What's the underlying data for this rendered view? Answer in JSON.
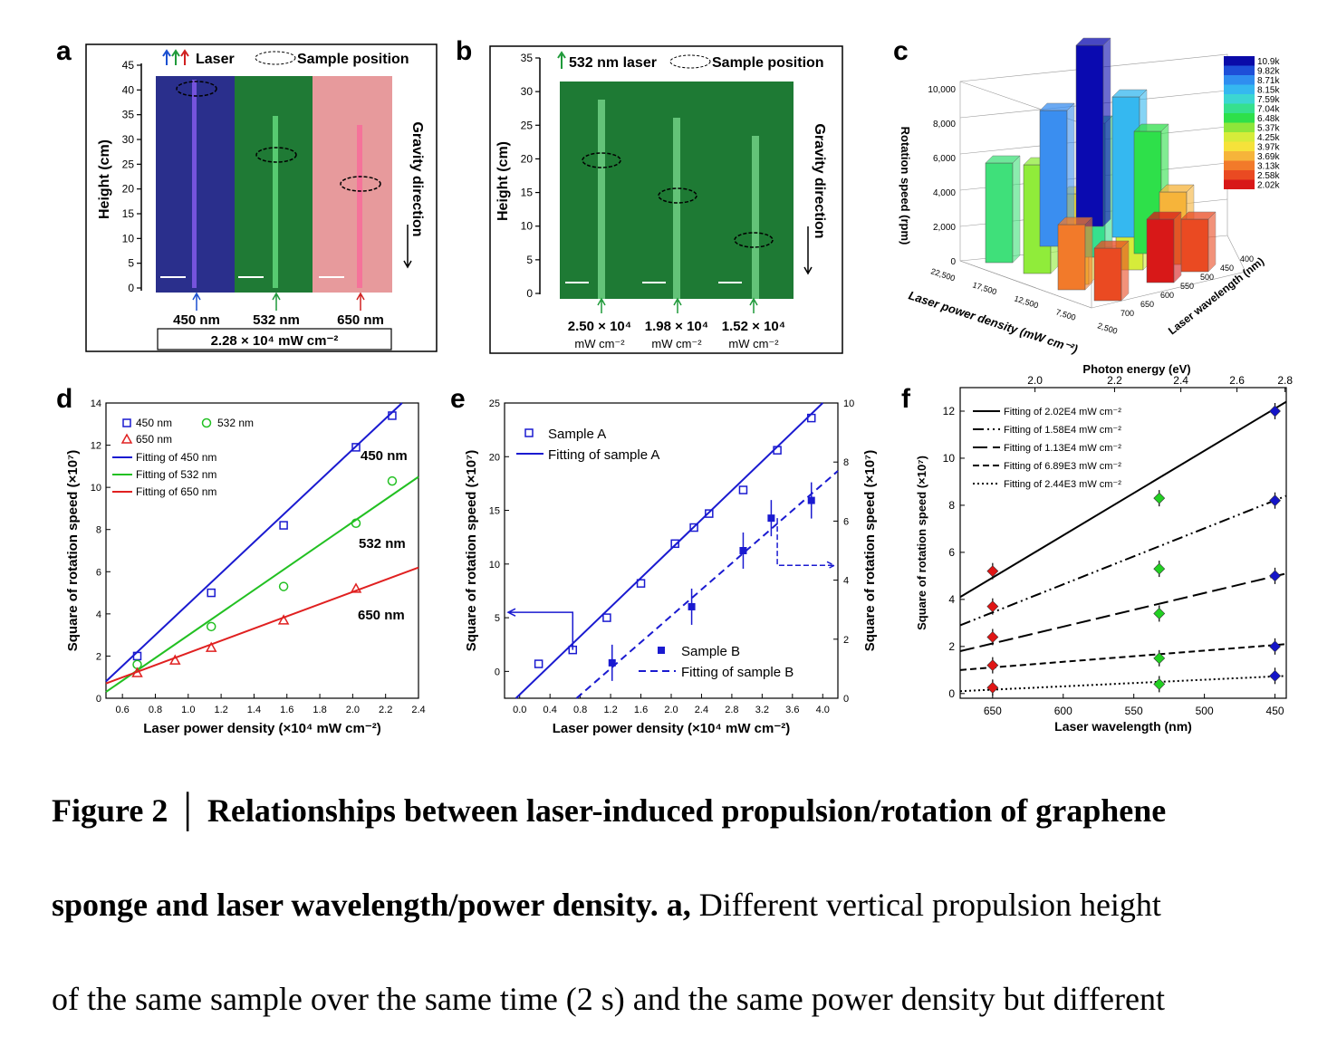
{
  "panels": {
    "a": {
      "label": "a",
      "legend_laser": "Laser",
      "legend_sample": "Sample position",
      "ylabel": "Height (cm)",
      "yticks": [
        "0",
        "5",
        "10",
        "15",
        "20",
        "25",
        "30",
        "35",
        "40",
        "45"
      ],
      "side_label": "Gravity direction",
      "wavelengths": [
        "450 nm",
        "532 nm",
        "650 nm"
      ],
      "power": "2.28 × 10⁴  mW cm⁻²",
      "colors": {
        "blue": "#2a2f8c",
        "green": "#1f7a35",
        "red": "#e79a9c"
      }
    },
    "b": {
      "label": "b",
      "legend_laser": "532 nm laser",
      "legend_sample": "Sample position",
      "ylabel": "Height (cm)",
      "yticks": [
        "0",
        "5",
        "10",
        "15",
        "20",
        "25",
        "30",
        "35"
      ],
      "side_label": "Gravity direction",
      "powers": [
        "2.50 × 10⁴",
        "1.98 × 10⁴",
        "1.52 × 10⁴"
      ],
      "units": [
        "mW cm⁻²",
        "mW cm⁻²",
        "mW cm⁻²"
      ]
    },
    "c": {
      "label": "c",
      "zlabel": "Rotation speed (rpm)",
      "xlabel": "Laser power density (mW cm⁻²)",
      "ylabel": "Laser wavelength (nm)",
      "zticks": [
        "0",
        "2,000",
        "4,000",
        "6,000",
        "8,000",
        "10,000"
      ],
      "xticks": [
        "22,500",
        "17,500",
        "12,500",
        "7,500",
        "2,500"
      ],
      "yticks": [
        "400",
        "450",
        "500",
        "550",
        "600",
        "650",
        "700"
      ],
      "colorbar": [
        "10.9k",
        "9.82k",
        "8.71k",
        "8.15k",
        "7.59k",
        "7.04k",
        "6.48k",
        "5.37k",
        "4.25k",
        "3.97k",
        "3.69k",
        "3.13k",
        "2.58k",
        "2.02k"
      ],
      "colorbar_colors": [
        "#0a0aa8",
        "#1e4fd8",
        "#2f8ef0",
        "#35b8f0",
        "#3cd6d2",
        "#36e08e",
        "#2ee04a",
        "#8ee63a",
        "#d6ec3a",
        "#f6e23a",
        "#f6b43a",
        "#f27a2a",
        "#ea4a22",
        "#d81818"
      ]
    },
    "d": {
      "label": "d"
    },
    "e": {
      "label": "e"
    },
    "f": {
      "label": "f"
    }
  },
  "chart_data": [
    {
      "id": "d",
      "type": "scatter",
      "xlabel": "Laser power density (×10⁴ mW cm⁻²)",
      "ylabel": "Square of rotation speed (×10⁷)",
      "xlim": [
        0.5,
        2.4
      ],
      "ylim": [
        0,
        14
      ],
      "xticks": [
        0.6,
        0.8,
        1.0,
        1.2,
        1.4,
        1.6,
        1.8,
        2.0,
        2.2,
        2.4
      ],
      "yticks": [
        0,
        2,
        4,
        6,
        8,
        10,
        12,
        14
      ],
      "series": [
        {
          "name": "450 nm",
          "color": "#1a1ad0",
          "marker": "square",
          "points": [
            [
              0.69,
              2.0
            ],
            [
              1.14,
              5.0
            ],
            [
              1.58,
              8.2
            ],
            [
              2.02,
              11.9
            ],
            [
              2.24,
              13.4
            ]
          ],
          "fit": [
            [
              0.5,
              0.8
            ],
            [
              2.3,
              14.0
            ]
          ],
          "fit_name": "Fitting of 450 nm",
          "line_label": "450 nm"
        },
        {
          "name": "532 nm",
          "color": "#22c022",
          "marker": "circle",
          "points": [
            [
              0.69,
              1.6
            ],
            [
              1.14,
              3.4
            ],
            [
              1.58,
              5.3
            ],
            [
              2.02,
              8.3
            ],
            [
              2.24,
              10.3
            ]
          ],
          "fit": [
            [
              0.5,
              0.3
            ],
            [
              2.4,
              10.5
            ]
          ],
          "fit_name": "Fitting of 532 nm",
          "line_label": "532 nm"
        },
        {
          "name": "650 nm",
          "color": "#e02020",
          "marker": "triangle",
          "points": [
            [
              0.69,
              1.2
            ],
            [
              0.92,
              1.8
            ],
            [
              1.14,
              2.4
            ],
            [
              1.58,
              3.7
            ],
            [
              2.02,
              5.2
            ]
          ],
          "fit": [
            [
              0.5,
              0.7
            ],
            [
              2.4,
              6.2
            ]
          ],
          "fit_name": "Fitting of 650 nm",
          "line_label": "650 nm"
        }
      ]
    },
    {
      "id": "e",
      "type": "scatter",
      "xlabel": "Laser power density (×10⁴ mW cm⁻²)",
      "ylabel": "Square of rotation speed (×10⁷)",
      "xlim": [
        -0.2,
        4.2
      ],
      "ylim": [
        -2.5,
        25
      ],
      "y2lim": [
        0,
        10
      ],
      "xticks": [
        0.0,
        0.4,
        0.8,
        1.2,
        1.6,
        2.0,
        2.4,
        2.8,
        3.2,
        3.6,
        4.0
      ],
      "yticks": [
        0,
        5,
        10,
        15,
        20,
        25
      ],
      "y2ticks": [
        0,
        2,
        4,
        6,
        8,
        10
      ],
      "series": [
        {
          "name": "Sample A",
          "fit_name": "Fitting of sample A",
          "color": "#1a1ad0",
          "marker": "square-open",
          "axis": "left",
          "points": [
            [
              0.25,
              0.7
            ],
            [
              0.7,
              2.0
            ],
            [
              1.15,
              5.0
            ],
            [
              1.6,
              8.2
            ],
            [
              2.05,
              11.9
            ],
            [
              2.3,
              13.4
            ],
            [
              2.5,
              14.7
            ],
            [
              2.95,
              16.9
            ],
            [
              3.4,
              20.6
            ],
            [
              3.85,
              23.6
            ]
          ],
          "fit": [
            [
              -0.05,
              -2.5
            ],
            [
              4.0,
              25.0
            ]
          ]
        },
        {
          "name": "Sample B",
          "fit_name": "Fitting of sample B",
          "color": "#1a1ad0",
          "marker": "square-filled",
          "axis": "right",
          "points": [
            [
              1.22,
              1.2
            ],
            [
              2.27,
              3.1
            ],
            [
              2.95,
              5.0
            ],
            [
              3.32,
              6.1
            ],
            [
              3.85,
              6.7
            ]
          ],
          "fit": [
            [
              0.75,
              0
            ],
            [
              4.2,
              7.7
            ]
          ]
        }
      ]
    },
    {
      "id": "f",
      "type": "scatter",
      "xlabel": "Laser wavelength (nm)",
      "x2label": "Photon energy (eV)",
      "ylabel": "Square of rotation speed (×10⁷)",
      "xlim": [
        673,
        442
      ],
      "ylim": [
        -0.2,
        13
      ],
      "xticks": [
        650,
        600,
        550,
        500,
        450
      ],
      "x2ticks": [
        2.0,
        2.2,
        2.4,
        2.6,
        2.8
      ],
      "yticks": [
        0,
        2,
        4,
        6,
        8,
        10,
        12
      ],
      "series": [
        {
          "name": "Fitting of 2.02E4 mW cm⁻²",
          "dash": "",
          "fit": [
            [
              673,
              4.1
            ],
            [
              442,
              12.4
            ]
          ]
        },
        {
          "name": "Fitting of 1.58E4 mW cm⁻²",
          "dash": "12 4 2 4 2 4",
          "fit": [
            [
              673,
              2.9
            ],
            [
              442,
              8.4
            ]
          ]
        },
        {
          "name": "Fitting of 1.13E4 mW cm⁻²",
          "dash": "16 6",
          "fit": [
            [
              673,
              1.8
            ],
            [
              442,
              5.1
            ]
          ]
        },
        {
          "name": "Fitting of 6.89E3 mW cm⁻²",
          "dash": "7 4",
          "fit": [
            [
              673,
              1.0
            ],
            [
              442,
              2.1
            ]
          ]
        },
        {
          "name": "Fitting of 2.44E3 mW cm⁻²",
          "dash": "2 3",
          "fit": [
            [
              673,
              0.1
            ],
            [
              442,
              0.75
            ]
          ]
        }
      ],
      "points": [
        {
          "x": 650,
          "y": 5.2,
          "color": "#e01515"
        },
        {
          "x": 650,
          "y": 3.7,
          "color": "#e01515"
        },
        {
          "x": 650,
          "y": 2.4,
          "color": "#e01515"
        },
        {
          "x": 650,
          "y": 1.2,
          "color": "#e01515"
        },
        {
          "x": 650,
          "y": 0.25,
          "color": "#e01515"
        },
        {
          "x": 532,
          "y": 8.3,
          "color": "#22d022"
        },
        {
          "x": 532,
          "y": 5.3,
          "color": "#22d022"
        },
        {
          "x": 532,
          "y": 3.4,
          "color": "#22d022"
        },
        {
          "x": 532,
          "y": 1.5,
          "color": "#22d022"
        },
        {
          "x": 532,
          "y": 0.4,
          "color": "#22d022"
        },
        {
          "x": 450,
          "y": 12.0,
          "color": "#1515c8"
        },
        {
          "x": 450,
          "y": 8.2,
          "color": "#1515c8"
        },
        {
          "x": 450,
          "y": 5.0,
          "color": "#1515c8"
        },
        {
          "x": 450,
          "y": 2.0,
          "color": "#1515c8"
        },
        {
          "x": 450,
          "y": 0.75,
          "color": "#1515c8"
        }
      ]
    }
  ],
  "caption": {
    "fig": "Figure 2",
    "sep": "│",
    "title_l1": "Relationships between laser-induced propulsion/rotation of graphene",
    "title_l2": "sponge and laser wavelength/power density.",
    "a_label": "a,",
    "text_l2": " Different vertical propulsion height",
    "text_l3": "of the same sample over the same time (2 s) and the same power density but different"
  }
}
